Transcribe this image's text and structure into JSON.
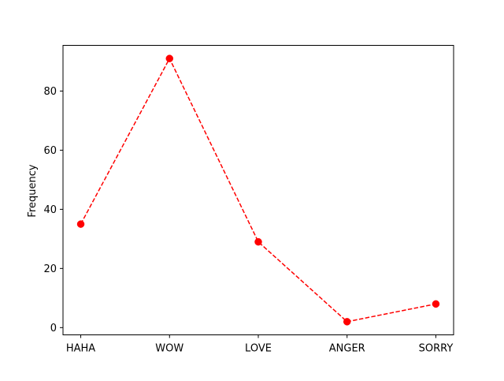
{
  "chart_data": {
    "type": "line",
    "title": "",
    "xlabel": "",
    "ylabel": "Frequency",
    "categories": [
      "HAHA",
      "WOW",
      "LOVE",
      "ANGER",
      "SORRY"
    ],
    "series": [
      {
        "values": [
          35,
          91,
          29,
          2,
          8
        ],
        "color": "#ff0000",
        "line_style": "dashed",
        "marker": "circle"
      }
    ],
    "ylim": [
      -2.45,
      95.45
    ],
    "yticks": [
      0,
      20,
      40,
      60,
      80
    ],
    "grid": false,
    "legend": "none"
  }
}
